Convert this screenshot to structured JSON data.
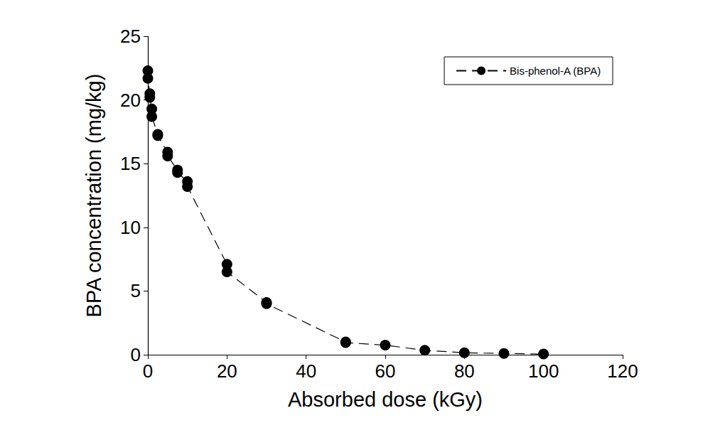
{
  "chart_data": {
    "type": "line",
    "x_label": "Absorbed dose (kGy)",
    "y_label": "BPA concentration (mg/kg)",
    "x": [
      0,
      0,
      0.5,
      0.5,
      1,
      1,
      2.5,
      2.5,
      5,
      5,
      7.5,
      7.5,
      10,
      10,
      20,
      20,
      30,
      30,
      50,
      50,
      60,
      70,
      80,
      90,
      100
    ],
    "series": [
      {
        "name": "Bis-phenol-A (BPA)",
        "color": "#000000",
        "marker": "circle",
        "line_style": "dashed",
        "values": [
          22.3,
          21.7,
          20.5,
          20.2,
          19.3,
          18.7,
          17.3,
          17.2,
          15.9,
          15.6,
          14.5,
          14.3,
          13.6,
          13.2,
          7.1,
          6.5,
          4.1,
          4.0,
          1.0,
          0.95,
          0.75,
          0.35,
          0.15,
          0.1,
          0.05
        ]
      }
    ],
    "xlim": [
      0,
      120
    ],
    "xticks": [
      0,
      20,
      40,
      60,
      80,
      100,
      120
    ],
    "ylim": [
      0,
      25
    ],
    "yticks": [
      0,
      5,
      10,
      15,
      20,
      25
    ],
    "grid": false,
    "legend": "upper right"
  }
}
